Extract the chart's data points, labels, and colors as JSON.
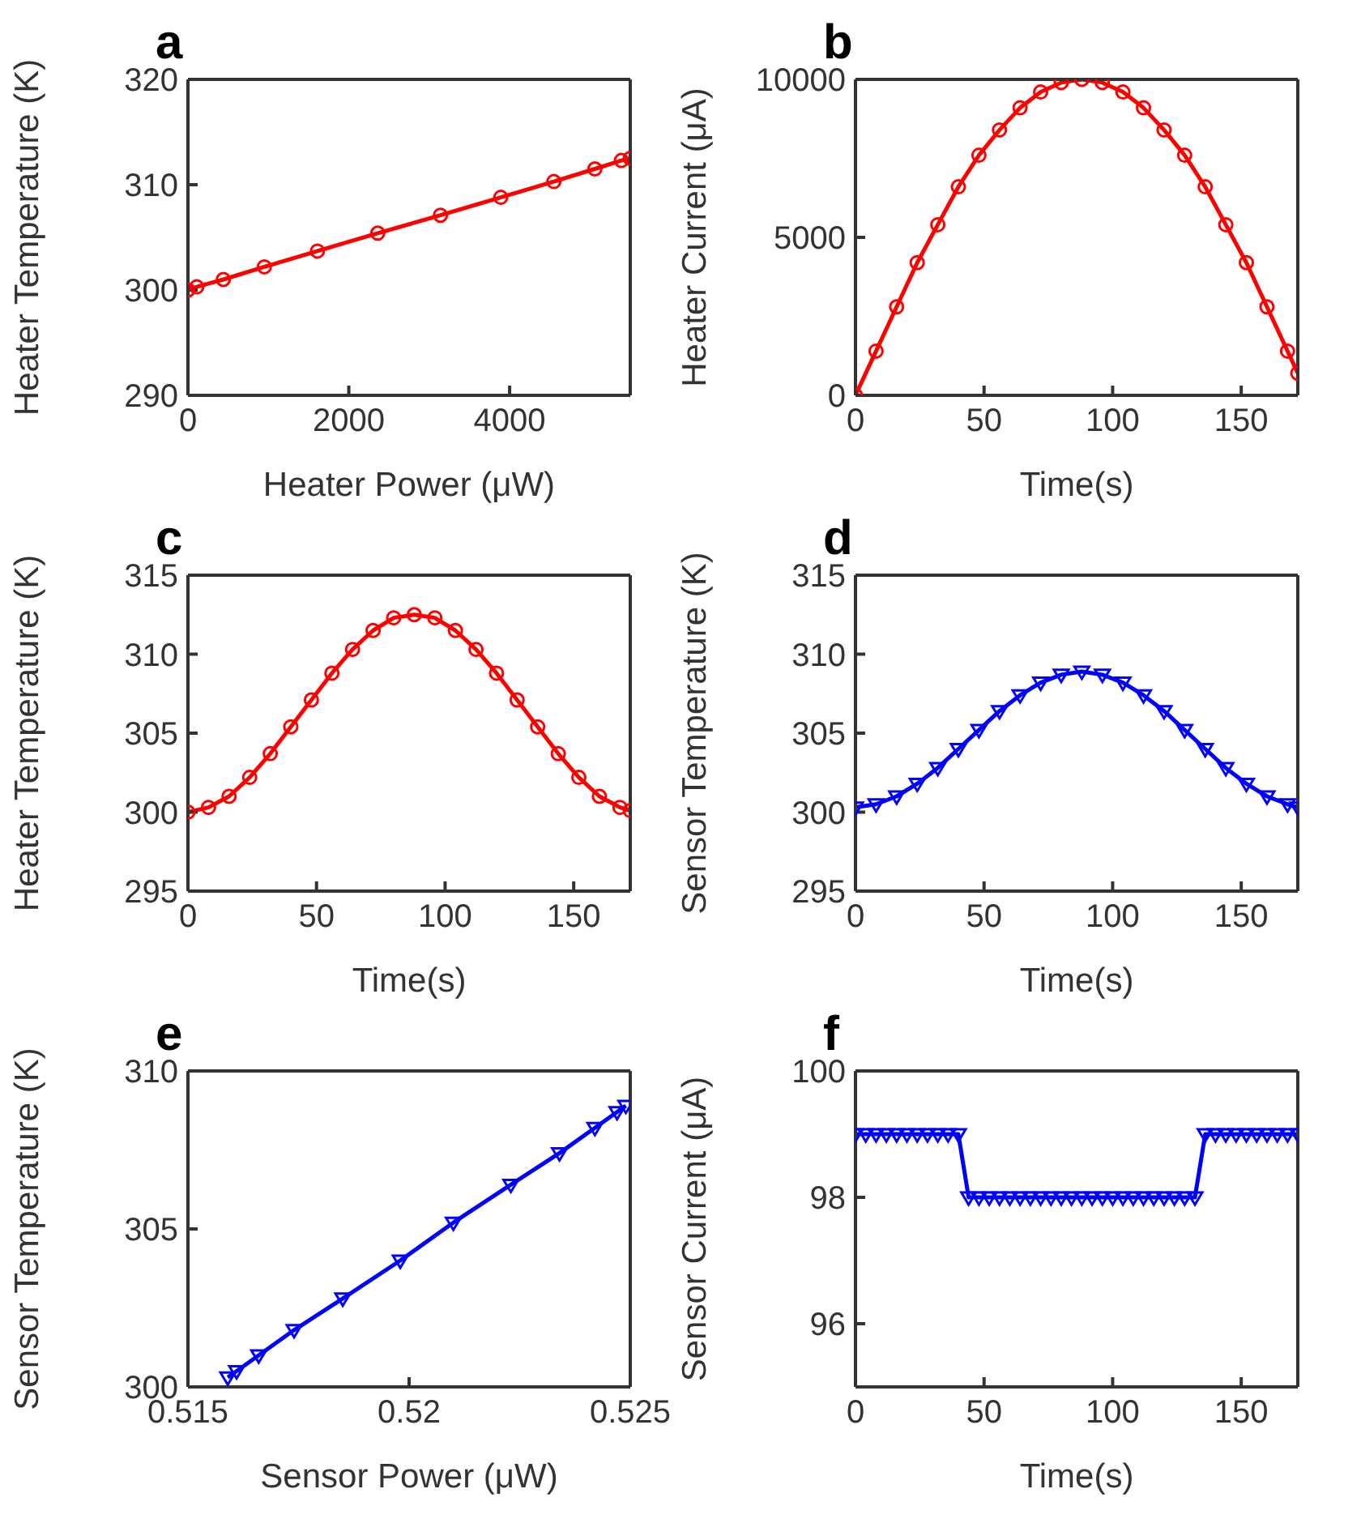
{
  "chart_data": [
    {
      "type": "line",
      "title": "a",
      "xlabel": "Heater Power (μW)",
      "ylabel": "Heater Temperature (K)",
      "x": [
        0,
        110,
        440,
        950,
        1610,
        2360,
        3140,
        3890,
        4550,
        5060,
        5390,
        5500
      ],
      "series": [
        {
          "color": "#ff0000",
          "values": [
            300,
            300.3,
            301,
            302.2,
            303.7,
            305.4,
            307.1,
            308.8,
            310.3,
            311.5,
            312.3,
            312.5
          ]
        }
      ],
      "xlim": [
        0,
        5500
      ],
      "xticks": [
        0,
        2000,
        4000
      ],
      "ylim": [
        290,
        320
      ],
      "yticks": [
        290,
        300,
        310,
        320
      ],
      "marker": "circle",
      "line_style": "solid"
    },
    {
      "type": "line",
      "title": "b",
      "xlabel": "Time(s)",
      "ylabel": "Heater Current (μA)",
      "x": [
        0,
        8,
        16,
        24,
        32,
        40,
        48,
        56,
        64,
        72,
        80,
        88,
        96,
        104,
        112,
        120,
        128,
        136,
        144,
        152,
        160,
        168,
        172
      ],
      "series": [
        {
          "color": "#ff0000",
          "values": [
            0,
            1400,
            2800,
            4200,
            5400,
            6600,
            7600,
            8400,
            9100,
            9600,
            9900,
            10000,
            9900,
            9600,
            9100,
            8400,
            7600,
            6600,
            5400,
            4200,
            2800,
            1400,
            700
          ]
        }
      ],
      "xlim": [
        0,
        172
      ],
      "xticks": [
        0,
        50,
        100,
        150
      ],
      "ylim": [
        0,
        10000
      ],
      "yticks": [
        0,
        5000,
        10000
      ],
      "marker": "circle",
      "line_style": "solid"
    },
    {
      "type": "line",
      "title": "c",
      "xlabel": "Time(s)",
      "ylabel": "Heater Temperature (K)",
      "x": [
        0,
        8,
        16,
        24,
        32,
        40,
        48,
        56,
        64,
        72,
        80,
        88,
        96,
        104,
        112,
        120,
        128,
        136,
        144,
        152,
        160,
        168,
        172
      ],
      "series": [
        {
          "color": "#ff0000",
          "values": [
            300,
            300.3,
            301,
            302.2,
            303.7,
            305.4,
            307.1,
            308.8,
            310.3,
            311.5,
            312.3,
            312.5,
            312.3,
            311.5,
            310.3,
            308.8,
            307.1,
            305.4,
            303.7,
            302.2,
            301,
            300.3,
            300.1
          ]
        }
      ],
      "xlim": [
        0,
        172
      ],
      "xticks": [
        0,
        50,
        100,
        150
      ],
      "ylim": [
        295,
        315
      ],
      "yticks": [
        295,
        300,
        305,
        310,
        315
      ],
      "marker": "circle",
      "line_style": "solid"
    },
    {
      "type": "line",
      "title": "d",
      "xlabel": "Time(s)",
      "ylabel": "Sensor Temperature (K)",
      "x": [
        0,
        8,
        16,
        24,
        32,
        40,
        48,
        56,
        64,
        72,
        80,
        88,
        96,
        104,
        112,
        120,
        128,
        136,
        144,
        152,
        160,
        168,
        172
      ],
      "series": [
        {
          "color": "#0000ff",
          "values": [
            300.3,
            300.5,
            301,
            301.8,
            302.8,
            304,
            305.2,
            306.4,
            307.4,
            308.2,
            308.7,
            308.9,
            308.7,
            308.2,
            307.4,
            306.4,
            305.2,
            304,
            302.8,
            301.8,
            301,
            300.5,
            300.3
          ]
        }
      ],
      "xlim": [
        0,
        172
      ],
      "xticks": [
        0,
        50,
        100,
        150
      ],
      "ylim": [
        295,
        315
      ],
      "yticks": [
        295,
        300,
        305,
        310,
        315
      ],
      "marker": "triangle",
      "line_style": "solid"
    },
    {
      "type": "line",
      "title": "e",
      "xlabel": "Sensor Power (μW)",
      "ylabel": "Sensor Temperature (K)",
      "x": [
        0.5159,
        0.5161,
        0.5166,
        0.5174,
        0.5185,
        0.5198,
        0.521,
        0.5223,
        0.5234,
        0.5242,
        0.5247,
        0.5249
      ],
      "series": [
        {
          "color": "#0000ff",
          "values": [
            300.3,
            300.5,
            301,
            301.8,
            302.8,
            304,
            305.2,
            306.4,
            307.4,
            308.2,
            308.7,
            308.9
          ]
        }
      ],
      "xlim": [
        0.515,
        0.525
      ],
      "xticks": [
        0.515,
        0.52,
        0.525
      ],
      "ylim": [
        300,
        310
      ],
      "yticks": [
        300,
        305,
        310
      ],
      "marker": "triangle",
      "line_style": "solid"
    },
    {
      "type": "line",
      "title": "f",
      "xlabel": "Time(s)",
      "ylabel": "Sensor Current (μA)",
      "x": [
        0,
        4,
        8,
        12,
        16,
        20,
        24,
        28,
        32,
        36,
        40,
        44,
        48,
        52,
        56,
        60,
        64,
        68,
        72,
        76,
        80,
        84,
        88,
        92,
        96,
        100,
        104,
        108,
        112,
        116,
        120,
        124,
        128,
        132,
        136,
        140,
        144,
        148,
        152,
        156,
        160,
        164,
        168,
        172
      ],
      "series": [
        {
          "color": "#0000ff",
          "values": [
            99,
            99,
            99,
            99,
            99,
            99,
            99,
            99,
            99,
            99,
            99,
            98,
            98,
            98,
            98,
            98,
            98,
            98,
            98,
            98,
            98,
            98,
            98,
            98,
            98,
            98,
            98,
            98,
            98,
            98,
            98,
            98,
            98,
            98,
            99,
            99,
            99,
            99,
            99,
            99,
            99,
            99,
            99,
            99
          ]
        }
      ],
      "xlim": [
        0,
        172
      ],
      "xticks": [
        0,
        50,
        100,
        150
      ],
      "ylim": [
        95,
        100
      ],
      "yticks": [
        96,
        98,
        100
      ],
      "marker": "triangle",
      "line_style": "solid"
    }
  ]
}
